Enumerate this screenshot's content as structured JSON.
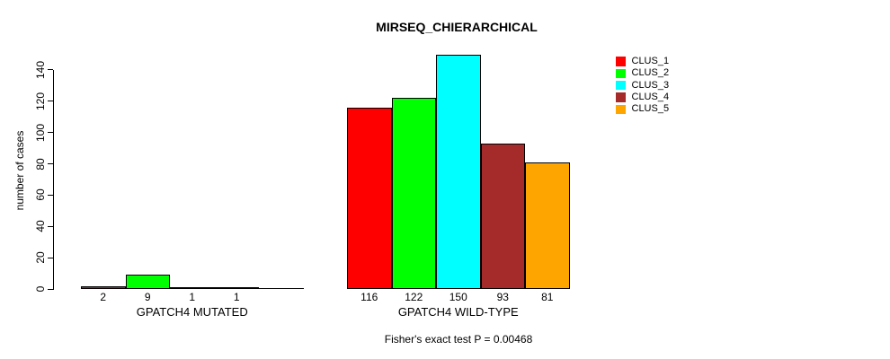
{
  "figure": {
    "title": "MIRSEQ_CHIERARCHICAL",
    "footer": "Fisher's exact test P = 0.00468"
  },
  "legend": {
    "items": [
      {
        "label": "CLUS_1",
        "color": "#FF0000"
      },
      {
        "label": "CLUS_2",
        "color": "#00FF00"
      },
      {
        "label": "CLUS_3",
        "color": "#00FFFF"
      },
      {
        "label": "CLUS_4",
        "color": "#A52A2A"
      },
      {
        "label": "CLUS_5",
        "color": "#FFA500"
      }
    ]
  },
  "chart_data": {
    "type": "bar",
    "title": "MIRSEQ_CHIERARCHICAL",
    "ylabel": "number of cases",
    "xlabel": "",
    "ylim": [
      0,
      140
    ],
    "yticks": [
      0,
      20,
      40,
      60,
      80,
      100,
      120,
      140
    ],
    "grid": false,
    "legend_position": "top-right",
    "legend_labels": [
      "CLUS_1",
      "CLUS_2",
      "CLUS_3",
      "CLUS_4",
      "CLUS_5"
    ],
    "colors": [
      "#FF0000",
      "#00FF00",
      "#00FFFF",
      "#A52A2A",
      "#FFA500"
    ],
    "categories": [
      "GPATCH4 MUTATED",
      "GPATCH4 WILD-TYPE"
    ],
    "series": [
      {
        "name": "CLUS_1",
        "color": "#FF0000",
        "values": [
          2,
          116
        ]
      },
      {
        "name": "CLUS_2",
        "color": "#00FF00",
        "values": [
          9,
          122
        ]
      },
      {
        "name": "CLUS_3",
        "color": "#00FFFF",
        "values": [
          1,
          150
        ]
      },
      {
        "name": "CLUS_4",
        "color": "#A52A2A",
        "values": [
          1,
          93
        ]
      },
      {
        "name": "CLUS_5",
        "color": "#FFA500",
        "values": [
          0,
          81
        ]
      }
    ],
    "groups": [
      {
        "label": "GPATCH4 MUTATED",
        "values": [
          2,
          9,
          1,
          1,
          0
        ],
        "bar_labels": [
          "2",
          "9",
          "1",
          "1",
          ""
        ]
      },
      {
        "label": "GPATCH4 WILD-TYPE",
        "values": [
          116,
          122,
          150,
          93,
          81
        ],
        "bar_labels": [
          "116",
          "122",
          "150",
          "93",
          "81"
        ]
      }
    ],
    "annotation": "Fisher's exact test P = 0.00468"
  }
}
